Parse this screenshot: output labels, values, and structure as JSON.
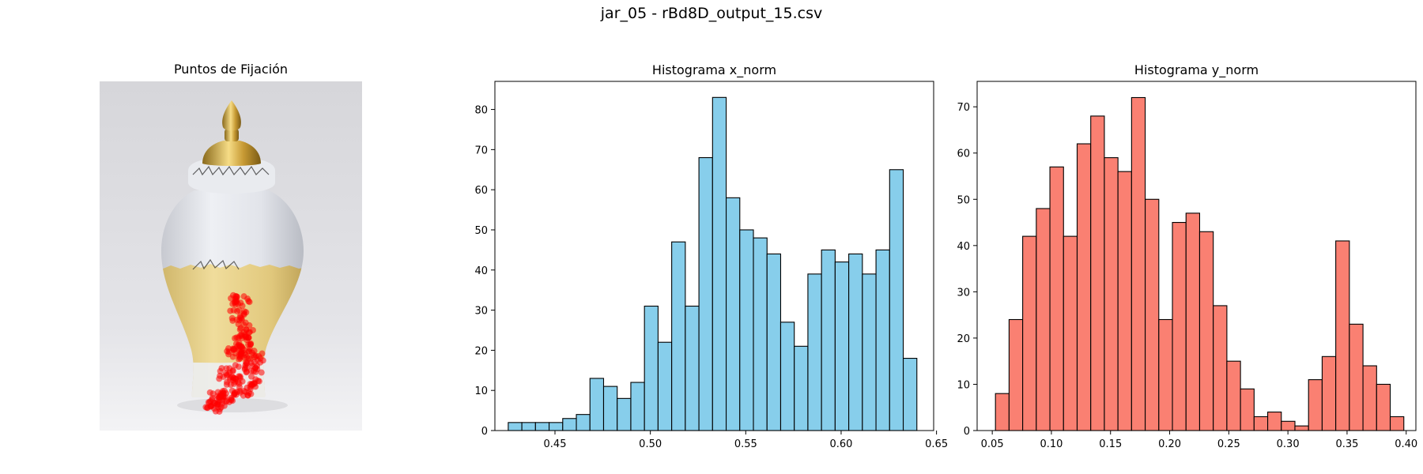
{
  "figure": {
    "title": "jar_05 - rBd8D_output_15.csv"
  },
  "image_panel": {
    "title": "Puntos de Fijación",
    "image_description_icon": "ginger-jar-photo",
    "fixation_color": "#ff0000"
  },
  "chart_data": [
    {
      "type": "bar",
      "title": "Histograma x_norm",
      "xlabel": "",
      "ylabel": "",
      "color": "#87ceeb",
      "edgecolor": "#000000",
      "bin_start": 0.4255,
      "bin_width": 0.00714,
      "values": [
        2,
        2,
        2,
        2,
        3,
        4,
        13,
        11,
        8,
        12,
        31,
        22,
        47,
        31,
        68,
        83,
        58,
        50,
        48,
        44,
        27,
        21,
        39,
        45,
        42,
        44,
        39,
        45,
        65,
        18
      ],
      "xlim": [
        0.4185,
        0.6485
      ],
      "ylim": [
        0,
        87
      ],
      "xticks": [
        "0.45",
        "0.50",
        "0.55",
        "0.60",
        "0.65"
      ],
      "yticks": [
        "0",
        "10",
        "20",
        "30",
        "40",
        "50",
        "60",
        "70",
        "80"
      ]
    },
    {
      "type": "bar",
      "title": "Histograma y_norm",
      "xlabel": "",
      "ylabel": "",
      "color": "#fa8072",
      "edgecolor": "#000000",
      "bin_start": 0.0527,
      "bin_width": 0.01151,
      "values": [
        8,
        24,
        42,
        48,
        57,
        42,
        62,
        68,
        59,
        56,
        72,
        50,
        24,
        45,
        47,
        43,
        27,
        15,
        9,
        3,
        4,
        2,
        1,
        11,
        16,
        41,
        23,
        14,
        10,
        3
      ],
      "xlim": [
        0.0372,
        0.4082
      ],
      "ylim": [
        0,
        75.5
      ],
      "xticks": [
        "0.05",
        "0.10",
        "0.15",
        "0.20",
        "0.25",
        "0.30",
        "0.35",
        "0.40"
      ],
      "yticks": [
        "0",
        "10",
        "20",
        "30",
        "40",
        "50",
        "60",
        "70"
      ]
    }
  ]
}
